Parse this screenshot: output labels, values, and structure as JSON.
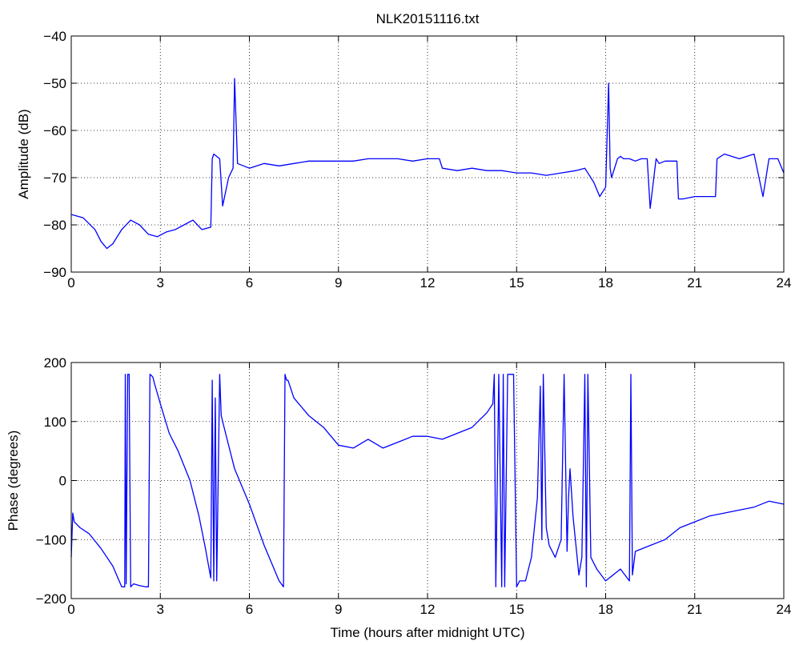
{
  "title": "NLK20151116.txt",
  "chart_data": [
    {
      "type": "line",
      "title": "NLK20151116.txt",
      "xlabel": "",
      "ylabel": "Amplitude (dB)",
      "xlim": [
        0,
        24
      ],
      "ylim": [
        -90,
        -40
      ],
      "xticks": [
        0,
        3,
        6,
        9,
        12,
        15,
        18,
        21,
        24
      ],
      "xtick_labels": [
        "0",
        "3",
        "6",
        "9",
        "12",
        "15",
        "18",
        "21",
        "24"
      ],
      "yticks": [
        -90,
        -80,
        -70,
        -60,
        -50,
        -40
      ],
      "ytick_labels": [
        "−90",
        "−80",
        "−70",
        "−60",
        "−50",
        "−40"
      ],
      "grid": true,
      "color": "#0000ff",
      "x": [
        0,
        0.4,
        0.8,
        1.0,
        1.2,
        1.4,
        1.7,
        2.0,
        2.3,
        2.6,
        2.9,
        3.2,
        3.5,
        3.8,
        4.1,
        4.4,
        4.7,
        4.75,
        4.8,
        5.0,
        5.1,
        5.3,
        5.45,
        5.5,
        5.6,
        6.0,
        6.5,
        7.0,
        7.5,
        8.0,
        8.5,
        9.0,
        9.5,
        10.0,
        10.5,
        11.0,
        11.5,
        12.0,
        12.4,
        12.5,
        13.0,
        13.5,
        14.0,
        14.5,
        15.0,
        15.5,
        16.0,
        16.5,
        17.0,
        17.3,
        17.6,
        17.8,
        18.0,
        18.1,
        18.15,
        18.2,
        18.4,
        18.5,
        18.6,
        18.8,
        19.0,
        19.2,
        19.4,
        19.5,
        19.7,
        19.8,
        20.0,
        20.2,
        20.4,
        20.45,
        20.6,
        21.0,
        21.5,
        21.7,
        21.75,
        22.0,
        22.5,
        23.0,
        23.3,
        23.5,
        23.8,
        24.0
      ],
      "y": [
        -77.8,
        -78.5,
        -81,
        -83.5,
        -85,
        -84,
        -81,
        -79,
        -80,
        -82,
        -82.5,
        -81.5,
        -81,
        -80,
        -79,
        -81,
        -80.5,
        -66,
        -65,
        -66,
        -76,
        -70,
        -68,
        -49,
        -67,
        -68,
        -67,
        -67.5,
        -67,
        -66.5,
        -66.5,
        -66.5,
        -66.5,
        -66,
        -66,
        -66,
        -66.5,
        -66,
        -66,
        -68,
        -68.5,
        -68,
        -68.5,
        -68.5,
        -69,
        -69,
        -69.5,
        -69,
        -68.5,
        -68,
        -71,
        -74,
        -72,
        -50,
        -68,
        -70,
        -66,
        -65.5,
        -66,
        -66,
        -66.5,
        -66,
        -66,
        -76.5,
        -66,
        -67,
        -66.5,
        -66.5,
        -66.5,
        -74.5,
        -74.5,
        -74,
        -74,
        -74,
        -66,
        -65,
        -66,
        -65,
        -74,
        -66,
        -66,
        -69
      ]
    },
    {
      "type": "line",
      "title": "",
      "xlabel": "Time (hours after midnight UTC)",
      "ylabel": "Phase (degrees)",
      "xlim": [
        0,
        24
      ],
      "ylim": [
        -200,
        200
      ],
      "xticks": [
        0,
        3,
        6,
        9,
        12,
        15,
        18,
        21,
        24
      ],
      "xtick_labels": [
        "0",
        "3",
        "6",
        "9",
        "12",
        "15",
        "18",
        "21",
        "24"
      ],
      "yticks": [
        -200,
        -100,
        0,
        100,
        200
      ],
      "ytick_labels": [
        "−200",
        "−100",
        "0",
        "100",
        "200"
      ],
      "grid": true,
      "color": "#0000ff",
      "x": [
        0,
        0.05,
        0.1,
        0.3,
        0.6,
        1.0,
        1.4,
        1.7,
        1.8,
        1.82,
        1.85,
        1.9,
        1.95,
        2.0,
        2.1,
        2.3,
        2.5,
        2.6,
        2.65,
        2.7,
        2.75,
        2.8,
        3.0,
        3.3,
        3.6,
        4.0,
        4.3,
        4.5,
        4.7,
        4.75,
        4.8,
        4.85,
        4.9,
        5.0,
        5.05,
        5.1,
        5.2,
        5.5,
        6.0,
        6.5,
        7.0,
        7.15,
        7.2,
        7.25,
        7.3,
        7.5,
        8.0,
        8.5,
        9.0,
        9.5,
        10.0,
        10.5,
        11.0,
        11.5,
        12.0,
        12.5,
        13.0,
        13.5,
        14.0,
        14.2,
        14.25,
        14.3,
        14.4,
        14.5,
        14.55,
        14.6,
        14.7,
        14.8,
        14.9,
        15.0,
        15.1,
        15.3,
        15.5,
        15.7,
        15.8,
        15.85,
        15.9,
        16.0,
        16.1,
        16.3,
        16.5,
        16.6,
        16.7,
        16.75,
        16.8,
        16.9,
        17.0,
        17.1,
        17.2,
        17.3,
        17.35,
        17.4,
        17.5,
        17.7,
        18.0,
        18.5,
        18.8,
        18.85,
        18.9,
        19.0,
        19.5,
        20.0,
        20.5,
        21.0,
        21.5,
        22.0,
        22.5,
        23.0,
        23.5,
        24.0
      ],
      "y": [
        -130,
        -55,
        -70,
        -80,
        -90,
        -115,
        -145,
        -180,
        -180,
        180,
        -175,
        180,
        180,
        -180,
        -175,
        -178,
        -180,
        -180,
        180,
        178,
        175,
        165,
        130,
        80,
        50,
        0,
        -60,
        -110,
        -165,
        170,
        -170,
        140,
        -170,
        180,
        110,
        100,
        80,
        20,
        -40,
        -110,
        -170,
        -180,
        180,
        170,
        170,
        140,
        110,
        90,
        60,
        55,
        70,
        55,
        65,
        75,
        75,
        70,
        80,
        90,
        115,
        130,
        180,
        -180,
        180,
        -180,
        180,
        -180,
        180,
        180,
        180,
        -180,
        -170,
        -170,
        -130,
        -30,
        160,
        -100,
        180,
        -80,
        -110,
        -130,
        -100,
        180,
        -120,
        -30,
        20,
        -60,
        -110,
        -160,
        -130,
        180,
        -180,
        180,
        -130,
        -150,
        -170,
        -150,
        -170,
        180,
        -160,
        -120,
        -110,
        -100,
        -80,
        -70,
        -60,
        -55,
        -50,
        -45,
        -35,
        -40
      ]
    }
  ]
}
